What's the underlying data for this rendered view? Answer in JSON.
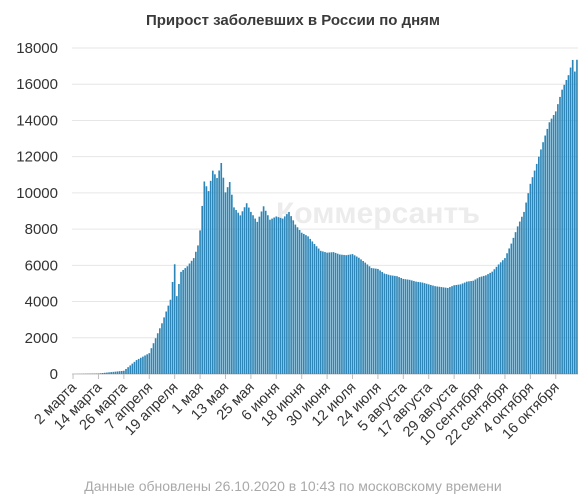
{
  "chart_data": {
    "type": "bar",
    "title": "Прирост заболевших в России по дням",
    "xlabel": "",
    "ylabel": "",
    "ylim": [
      0,
      18000
    ],
    "yticks": [
      0,
      2000,
      4000,
      6000,
      8000,
      10000,
      12000,
      14000,
      16000,
      18000
    ],
    "grid": true,
    "legend": "none",
    "bar_color": "#2d86b7",
    "x_start": "2020-03-02",
    "x_end": "2020-10-26",
    "xtick_labels": [
      {
        "date": "2020-03-02",
        "label": "2 марта"
      },
      {
        "date": "2020-03-14",
        "label": "14 марта"
      },
      {
        "date": "2020-03-26",
        "label": "26 марта"
      },
      {
        "date": "2020-04-07",
        "label": "7 апреля"
      },
      {
        "date": "2020-04-19",
        "label": "19 апреля"
      },
      {
        "date": "2020-05-01",
        "label": "1 мая"
      },
      {
        "date": "2020-05-13",
        "label": "13 мая"
      },
      {
        "date": "2020-05-25",
        "label": "25 мая"
      },
      {
        "date": "2020-06-06",
        "label": "6 июня"
      },
      {
        "date": "2020-06-18",
        "label": "18 июня"
      },
      {
        "date": "2020-06-30",
        "label": "30 июня"
      },
      {
        "date": "2020-07-12",
        "label": "12 июля"
      },
      {
        "date": "2020-07-24",
        "label": "24 июля"
      },
      {
        "date": "2020-08-05",
        "label": "5 августа"
      },
      {
        "date": "2020-08-17",
        "label": "17 августа"
      },
      {
        "date": "2020-08-29",
        "label": "29 августа"
      },
      {
        "date": "2020-09-10",
        "label": "10 сентября"
      },
      {
        "date": "2020-09-22",
        "label": "22 сентября"
      },
      {
        "date": "2020-10-04",
        "label": "4 октября"
      },
      {
        "date": "2020-10-16",
        "label": "16 октября"
      }
    ],
    "key_points": [
      {
        "date": "2020-03-02",
        "value": 0
      },
      {
        "date": "2020-03-14",
        "value": 30
      },
      {
        "date": "2020-03-26",
        "value": 180
      },
      {
        "date": "2020-04-01",
        "value": 770
      },
      {
        "date": "2020-04-07",
        "value": 1150
      },
      {
        "date": "2020-04-13",
        "value": 2800
      },
      {
        "date": "2020-04-17",
        "value": 4100
      },
      {
        "date": "2020-04-19",
        "value": 6060
      },
      {
        "date": "2020-04-20",
        "value": 4300
      },
      {
        "date": "2020-04-22",
        "value": 5640
      },
      {
        "date": "2020-04-25",
        "value": 5950
      },
      {
        "date": "2020-04-28",
        "value": 6400
      },
      {
        "date": "2020-04-30",
        "value": 7100
      },
      {
        "date": "2020-05-01",
        "value": 7930
      },
      {
        "date": "2020-05-03",
        "value": 10630
      },
      {
        "date": "2020-05-05",
        "value": 10100
      },
      {
        "date": "2020-05-07",
        "value": 11230
      },
      {
        "date": "2020-05-09",
        "value": 10820
      },
      {
        "date": "2020-05-11",
        "value": 11650
      },
      {
        "date": "2020-05-13",
        "value": 10030
      },
      {
        "date": "2020-05-15",
        "value": 10600
      },
      {
        "date": "2020-05-17",
        "value": 9200
      },
      {
        "date": "2020-05-20",
        "value": 8760
      },
      {
        "date": "2020-05-23",
        "value": 9430
      },
      {
        "date": "2020-05-25",
        "value": 8950
      },
      {
        "date": "2020-05-28",
        "value": 8400
      },
      {
        "date": "2020-05-31",
        "value": 9260
      },
      {
        "date": "2020-06-03",
        "value": 8520
      },
      {
        "date": "2020-06-06",
        "value": 8700
      },
      {
        "date": "2020-06-09",
        "value": 8580
      },
      {
        "date": "2020-06-12",
        "value": 8950
      },
      {
        "date": "2020-06-15",
        "value": 8250
      },
      {
        "date": "2020-06-18",
        "value": 7800
      },
      {
        "date": "2020-06-21",
        "value": 7600
      },
      {
        "date": "2020-06-24",
        "value": 7180
      },
      {
        "date": "2020-06-27",
        "value": 6800
      },
      {
        "date": "2020-06-30",
        "value": 6700
      },
      {
        "date": "2020-07-03",
        "value": 6730
      },
      {
        "date": "2020-07-06",
        "value": 6600
      },
      {
        "date": "2020-07-09",
        "value": 6560
      },
      {
        "date": "2020-07-12",
        "value": 6620
      },
      {
        "date": "2020-07-15",
        "value": 6420
      },
      {
        "date": "2020-07-18",
        "value": 6150
      },
      {
        "date": "2020-07-21",
        "value": 5850
      },
      {
        "date": "2020-07-24",
        "value": 5800
      },
      {
        "date": "2020-07-27",
        "value": 5550
      },
      {
        "date": "2020-07-30",
        "value": 5450
      },
      {
        "date": "2020-08-02",
        "value": 5400
      },
      {
        "date": "2020-08-05",
        "value": 5250
      },
      {
        "date": "2020-08-08",
        "value": 5200
      },
      {
        "date": "2020-08-11",
        "value": 5100
      },
      {
        "date": "2020-08-14",
        "value": 5050
      },
      {
        "date": "2020-08-17",
        "value": 4950
      },
      {
        "date": "2020-08-20",
        "value": 4850
      },
      {
        "date": "2020-08-23",
        "value": 4800
      },
      {
        "date": "2020-08-26",
        "value": 4750
      },
      {
        "date": "2020-08-29",
        "value": 4900
      },
      {
        "date": "2020-09-01",
        "value": 4950
      },
      {
        "date": "2020-09-04",
        "value": 5100
      },
      {
        "date": "2020-09-07",
        "value": 5150
      },
      {
        "date": "2020-09-10",
        "value": 5350
      },
      {
        "date": "2020-09-13",
        "value": 5450
      },
      {
        "date": "2020-09-16",
        "value": 5650
      },
      {
        "date": "2020-09-19",
        "value": 6050
      },
      {
        "date": "2020-09-22",
        "value": 6400
      },
      {
        "date": "2020-09-25",
        "value": 7200
      },
      {
        "date": "2020-09-28",
        "value": 8150
      },
      {
        "date": "2020-10-01",
        "value": 8950
      },
      {
        "date": "2020-10-04",
        "value": 10500
      },
      {
        "date": "2020-10-07",
        "value": 11600
      },
      {
        "date": "2020-10-10",
        "value": 12800
      },
      {
        "date": "2020-10-13",
        "value": 13900
      },
      {
        "date": "2020-10-16",
        "value": 14500
      },
      {
        "date": "2020-10-19",
        "value": 15700
      },
      {
        "date": "2020-10-22",
        "value": 16500
      },
      {
        "date": "2020-10-24",
        "value": 17340
      },
      {
        "date": "2020-10-25",
        "value": 16700
      },
      {
        "date": "2020-10-26",
        "value": 17350
      }
    ]
  },
  "watermark": "Коммерсантъ",
  "footer": {
    "update_text": "Данные обновлены 26.10.2020 в 10:43 по московскому времени"
  }
}
